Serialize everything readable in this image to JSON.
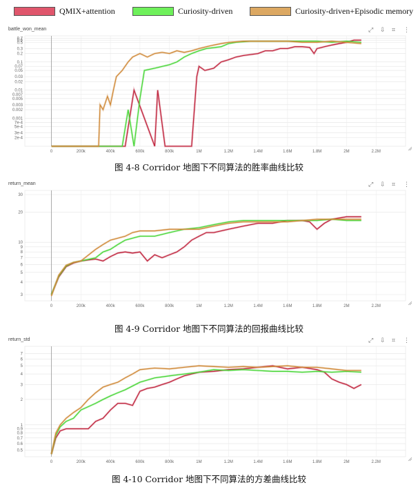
{
  "legend": [
    {
      "label": "QMIX+attention",
      "color": "#e0566c"
    },
    {
      "label": "Curiosity-driven",
      "color": "#6ef05a"
    },
    {
      "label": "Curiosity-driven+Episodic memory",
      "color": "#dca862"
    }
  ],
  "panel_icons": [
    "expand-icon",
    "pin-icon",
    "crop-icon",
    "more-icon"
  ],
  "panel_icon_glyphs": [
    "⤢",
    "⇩",
    "⌗",
    "⋮"
  ],
  "captions": {
    "fig8": "图 4-8 Corridor 地图下不同算法的胜率曲线比较",
    "fig9": "图 4-9 Corridor 地图下不同算法的回报曲线比较",
    "fig10": "图 4-10 Corridor 地图下不同算法的方差曲线比较"
  },
  "chart_data": [
    {
      "id": "battle_won_mean",
      "type": "line",
      "title": "battle_won_mean",
      "yscale": "log",
      "ylim": [
        0.0001,
        0.85
      ],
      "ytick_labels": [
        "0.7",
        "0.6",
        "0.5",
        "0.3",
        "0.2",
        "0.1",
        "0.07",
        "0.05",
        "0.03",
        "0.02",
        "0.01",
        "0.007",
        "0.005",
        "0.003",
        "0.002",
        "0.001",
        "7e-4",
        "5e-4",
        "3e-4",
        "2e-4"
      ],
      "ytick_values": [
        0.7,
        0.6,
        0.5,
        0.3,
        0.2,
        0.1,
        0.07,
        0.05,
        0.03,
        0.02,
        0.01,
        0.007,
        0.005,
        0.003,
        0.002,
        0.001,
        0.0007,
        0.0005,
        0.0003,
        0.0002
      ],
      "xlim": [
        -180000,
        2400000
      ],
      "xtick_labels": [
        "0",
        "200k",
        "400k",
        "600k",
        "800k",
        "1M",
        "1.2M",
        "1.4M",
        "1.6M",
        "1.8M",
        "2M",
        "2.2M"
      ],
      "xtick_values": [
        0,
        200000,
        400000,
        600000,
        800000,
        1000000,
        1200000,
        1400000,
        1600000,
        1800000,
        2000000,
        2200000
      ],
      "grid": true,
      "series": [
        {
          "name": "QMIX+attention",
          "color": "#c0263f",
          "x": [
            0,
            200000,
            500000,
            560000,
            700000,
            720000,
            770000,
            790000,
            950000,
            985000,
            1000000,
            1040000,
            1100000,
            1150000,
            1200000,
            1250000,
            1300000,
            1400000,
            1450000,
            1500000,
            1550000,
            1600000,
            1650000,
            1700000,
            1750000,
            1780000,
            1800000,
            1850000,
            1900000,
            1950000,
            2000000,
            2050000,
            2100000
          ],
          "y": [
            0.0001,
            0.0001,
            0.0001,
            0.01,
            0.0001,
            0.01,
            0.0001,
            0.0001,
            0.0001,
            0.03,
            0.07,
            0.05,
            0.06,
            0.1,
            0.12,
            0.15,
            0.17,
            0.2,
            0.25,
            0.25,
            0.3,
            0.3,
            0.35,
            0.35,
            0.33,
            0.2,
            0.3,
            0.35,
            0.4,
            0.45,
            0.5,
            0.6,
            0.6
          ]
        },
        {
          "name": "Curiosity-driven",
          "color": "#4bd63a",
          "x": [
            0,
            200000,
            480000,
            520000,
            560000,
            600000,
            630000,
            700000,
            800000,
            850000,
            900000,
            950000,
            1000000,
            1050000,
            1150000,
            1200000,
            1250000,
            1350000,
            1400000,
            1500000,
            1600000,
            1700000,
            1800000,
            1900000,
            2000000,
            2100000
          ],
          "y": [
            0.0001,
            0.0001,
            0.0001,
            0.002,
            0.0001,
            0.005,
            0.05,
            0.06,
            0.08,
            0.1,
            0.15,
            0.2,
            0.25,
            0.3,
            0.35,
            0.45,
            0.5,
            0.55,
            0.55,
            0.55,
            0.55,
            0.55,
            0.55,
            0.5,
            0.55,
            0.5
          ]
        },
        {
          "name": "Curiosity-driven+Episodic memory",
          "color": "#d08a3a",
          "x": [
            0,
            200000,
            320000,
            330000,
            350000,
            380000,
            400000,
            420000,
            440000,
            480000,
            520000,
            550000,
            600000,
            650000,
            700000,
            750000,
            800000,
            850000,
            900000,
            950000,
            1000000,
            1050000,
            1100000,
            1150000,
            1200000,
            1300000,
            1400000,
            1500000,
            1600000,
            1700000,
            1800000,
            1900000,
            2000000,
            2100000
          ],
          "y": [
            0.0001,
            0.0001,
            0.0001,
            0.003,
            0.002,
            0.006,
            0.003,
            0.01,
            0.03,
            0.05,
            0.1,
            0.15,
            0.2,
            0.15,
            0.2,
            0.22,
            0.2,
            0.25,
            0.22,
            0.25,
            0.3,
            0.35,
            0.4,
            0.45,
            0.5,
            0.55,
            0.55,
            0.55,
            0.55,
            0.5,
            0.5,
            0.55,
            0.5,
            0.45
          ]
        }
      ]
    },
    {
      "id": "return_mean",
      "type": "line",
      "title": "return_mean",
      "yscale": "log",
      "ylim": [
        2.6,
        33
      ],
      "ytick_labels": [
        "30",
        "20",
        "10",
        "9",
        "8",
        "7",
        "6",
        "5",
        "4",
        "3"
      ],
      "ytick_values": [
        30,
        20,
        10,
        9,
        8,
        7,
        6,
        5,
        4,
        3
      ],
      "xlim": [
        -180000,
        2400000
      ],
      "xtick_labels": [
        "0",
        "200k",
        "400k",
        "600k",
        "800k",
        "1M",
        "1.2M",
        "1.4M",
        "1.6M",
        "1.8M",
        "2M",
        "2.2M"
      ],
      "xtick_values": [
        0,
        200000,
        400000,
        600000,
        800000,
        1000000,
        1200000,
        1400000,
        1600000,
        1800000,
        2000000,
        2200000
      ],
      "grid": true,
      "series": [
        {
          "name": "QMIX+attention",
          "color": "#c0263f",
          "x": [
            0,
            50000,
            100000,
            150000,
            200000,
            300000,
            350000,
            400000,
            450000,
            500000,
            550000,
            600000,
            650000,
            700000,
            750000,
            800000,
            850000,
            900000,
            950000,
            1000000,
            1050000,
            1100000,
            1200000,
            1300000,
            1400000,
            1500000,
            1600000,
            1700000,
            1750000,
            1800000,
            1850000,
            1900000,
            2000000,
            2100000
          ],
          "y": [
            3,
            4.5,
            5.7,
            6.2,
            6.5,
            6.8,
            6.5,
            7.2,
            7.8,
            8,
            7.8,
            8,
            6.5,
            7.5,
            7,
            7.5,
            8,
            9,
            10.5,
            11.5,
            12.5,
            12.5,
            13.5,
            14.5,
            15.5,
            15.5,
            16.5,
            16.5,
            16,
            13.5,
            15.5,
            17,
            18,
            18
          ]
        },
        {
          "name": "Curiosity-driven",
          "color": "#4bd63a",
          "x": [
            0,
            50000,
            100000,
            150000,
            200000,
            300000,
            350000,
            400000,
            450000,
            500000,
            550000,
            600000,
            700000,
            800000,
            900000,
            1000000,
            1100000,
            1200000,
            1300000,
            1400000,
            1500000,
            1600000,
            1700000,
            1800000,
            1900000,
            2000000,
            2100000
          ],
          "y": [
            3,
            4.6,
            5.8,
            6.3,
            6.5,
            7,
            8,
            8.5,
            9.5,
            10.5,
            11,
            11.5,
            11.5,
            12.5,
            13.5,
            14,
            15,
            16,
            16.5,
            16.5,
            16.5,
            16.5,
            16.5,
            16.5,
            17,
            16.5,
            16.5
          ]
        },
        {
          "name": "Curiosity-driven+Episodic memory",
          "color": "#d08a3a",
          "x": [
            0,
            50000,
            100000,
            150000,
            200000,
            300000,
            350000,
            400000,
            450000,
            500000,
            550000,
            600000,
            700000,
            800000,
            900000,
            1000000,
            1100000,
            1200000,
            1300000,
            1400000,
            1500000,
            1600000,
            1700000,
            1800000,
            1900000,
            2000000,
            2100000
          ],
          "y": [
            2.9,
            4.7,
            5.9,
            6.3,
            6.5,
            8.5,
            9.5,
            10.5,
            11,
            11.5,
            12.5,
            13,
            13,
            13.5,
            13.5,
            13.5,
            14.5,
            15.5,
            16,
            16,
            16,
            16,
            16.5,
            17,
            17,
            17,
            17
          ]
        }
      ]
    },
    {
      "id": "return_std",
      "type": "line",
      "title": "return_std",
      "yscale": "log",
      "ylim": [
        0.42,
        8.5
      ],
      "ytick_labels": [
        "7",
        "6",
        "5",
        "4",
        "3",
        "2",
        "1",
        "0.9",
        "0.8",
        "0.7",
        "0.6",
        "0.5"
      ],
      "ytick_values": [
        7,
        6,
        5,
        4,
        3,
        2,
        1,
        0.9,
        0.8,
        0.7,
        0.6,
        0.5
      ],
      "xlim": [
        -180000,
        2400000
      ],
      "xtick_labels": [
        "0",
        "200k",
        "400k",
        "600k",
        "800k",
        "1M",
        "1.2M",
        "1.4M",
        "1.6M",
        "1.8M",
        "2M",
        "2.2M"
      ],
      "xtick_values": [
        0,
        200000,
        400000,
        600000,
        800000,
        1000000,
        1200000,
        1400000,
        1600000,
        1800000,
        2000000,
        2200000
      ],
      "grid": true,
      "series": [
        {
          "name": "QMIX+attention",
          "color": "#c0263f",
          "x": [
            0,
            30000,
            60000,
            100000,
            150000,
            200000,
            250000,
            300000,
            350000,
            400000,
            450000,
            500000,
            550000,
            600000,
            650000,
            700000,
            750000,
            800000,
            850000,
            900000,
            950000,
            1000000,
            1100000,
            1200000,
            1300000,
            1400000,
            1500000,
            1600000,
            1700000,
            1800000,
            1850000,
            1900000,
            1950000,
            2000000,
            2050000,
            2100000
          ],
          "y": [
            0.45,
            0.7,
            0.85,
            0.9,
            0.9,
            0.9,
            0.9,
            1.1,
            1.2,
            1.5,
            1.8,
            1.8,
            1.7,
            2.5,
            2.7,
            2.8,
            3,
            3.2,
            3.5,
            3.8,
            4,
            4.2,
            4.3,
            4.5,
            4.6,
            4.8,
            5,
            4.6,
            4.8,
            4.5,
            4.2,
            3.5,
            3.2,
            3,
            2.7,
            3
          ]
        },
        {
          "name": "Curiosity-driven",
          "color": "#4bd63a",
          "x": [
            0,
            30000,
            60000,
            100000,
            150000,
            200000,
            300000,
            350000,
            400000,
            450000,
            500000,
            600000,
            700000,
            800000,
            900000,
            1000000,
            1100000,
            1200000,
            1300000,
            1400000,
            1500000,
            1600000,
            1700000,
            1800000,
            1900000,
            2000000,
            2100000
          ],
          "y": [
            0.45,
            0.75,
            0.95,
            1.1,
            1.2,
            1.5,
            1.8,
            2,
            2.2,
            2.4,
            2.6,
            3.2,
            3.6,
            3.8,
            4,
            4.2,
            4.5,
            4.4,
            4.5,
            4.4,
            4.3,
            4.3,
            4.2,
            4.3,
            4.2,
            4.3,
            4.2
          ]
        },
        {
          "name": "Curiosity-driven+Episodic memory",
          "color": "#d08a3a",
          "x": [
            0,
            30000,
            60000,
            100000,
            150000,
            200000,
            250000,
            300000,
            350000,
            400000,
            450000,
            500000,
            550000,
            600000,
            700000,
            800000,
            900000,
            1000000,
            1100000,
            1200000,
            1300000,
            1400000,
            1500000,
            1600000,
            1700000,
            1800000,
            1900000,
            2000000,
            2100000
          ],
          "y": [
            0.45,
            0.8,
            1,
            1.2,
            1.4,
            1.6,
            2,
            2.4,
            2.8,
            3,
            3.2,
            3.6,
            4,
            4.5,
            4.7,
            4.6,
            4.8,
            5,
            4.9,
            4.8,
            4.9,
            4.8,
            4.9,
            5,
            4.8,
            4.8,
            4.6,
            4.4,
            4.4
          ]
        }
      ]
    }
  ]
}
